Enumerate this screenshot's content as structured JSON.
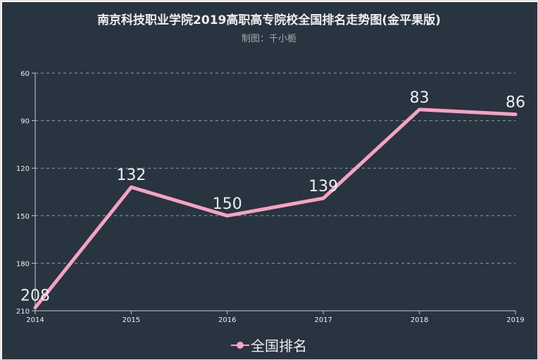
{
  "title": "南京科技职业学院2019高职高专院校全国排名走势图(金平果版)",
  "subtitle": "制图：千小栀",
  "colors": {
    "background": "#293441",
    "line": "#f5a3c0",
    "text": "#eeeeee",
    "grid": "#c8c8c8"
  },
  "legend": {
    "icon": "line-with-dot-icon",
    "placement": "bottom-center"
  },
  "chart_data": {
    "type": "line",
    "categories": [
      "2014",
      "2015",
      "2016",
      "2017",
      "2018",
      "2019"
    ],
    "series": [
      {
        "name": "全国排名",
        "values": [
          208,
          132,
          150,
          139,
          83,
          86
        ]
      }
    ],
    "yticks": [
      "60",
      "90",
      "120",
      "150",
      "180",
      "210"
    ],
    "ylim": [
      60,
      210
    ],
    "y_inverted": true,
    "grid": true,
    "data_labels": true
  }
}
